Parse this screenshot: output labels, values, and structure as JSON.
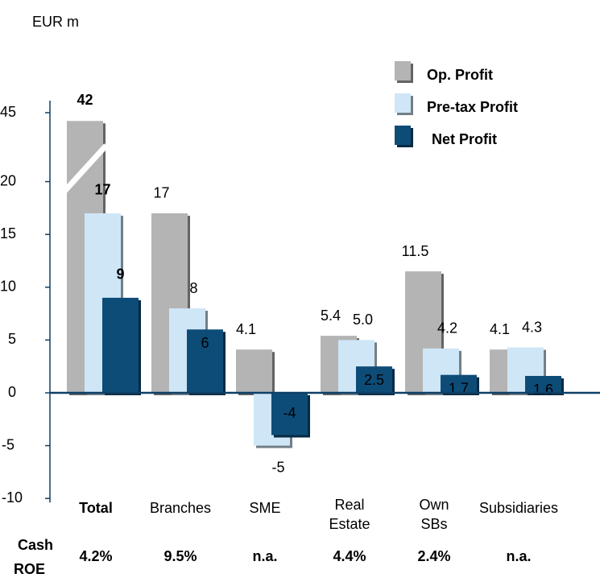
{
  "chart_data": {
    "type": "bar",
    "unit_label": "EUR m",
    "categories": [
      "Total",
      "Branches",
      "SME",
      "Real Estate",
      "Own SBs",
      "Subsidiaries"
    ],
    "series": [
      {
        "name": "Op. Profit",
        "color": "#b4b4b4",
        "values": [
          42,
          17,
          4.1,
          5.4,
          11.5,
          4.1
        ]
      },
      {
        "name": "Pre-tax Profit",
        "color": "#cfe6f7",
        "values": [
          17,
          8,
          -5,
          5.0,
          4.2,
          4.3
        ],
        "value_labels": [
          "17",
          "8",
          "-5",
          "5.0",
          "4.2",
          "4.3"
        ]
      },
      {
        "name": "Net Profit",
        "color": "#0e4c78",
        "values": [
          9,
          6,
          -4,
          2.5,
          1.7,
          1.6
        ]
      }
    ],
    "ylim": [
      -10,
      45
    ],
    "yticks": [
      -10,
      -5,
      0,
      5,
      10,
      15,
      20,
      45
    ],
    "axis_break": true,
    "highlight_color": "#cc2020",
    "roe_label": [
      "Cash",
      "ROE"
    ],
    "roe": [
      "4.2%",
      "9.5%",
      "n.a.",
      "4.4%",
      "2.4%",
      "n.a."
    ],
    "legend": "top-right"
  }
}
